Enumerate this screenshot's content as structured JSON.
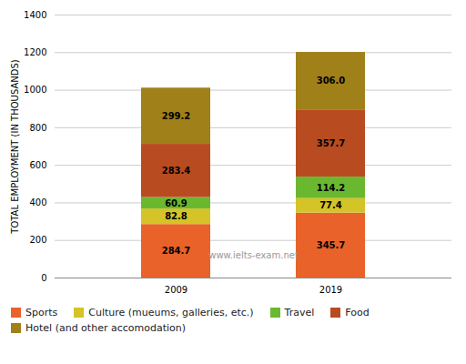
{
  "chart_data": {
    "type": "bar",
    "stacked": true,
    "categories": [
      "2009",
      "2019"
    ],
    "series": [
      {
        "name": "Sports",
        "color": "#e8622a",
        "values": [
          284.7,
          345.7
        ]
      },
      {
        "name": "Culture (mueums, galleries, etc.)",
        "color": "#d4c427",
        "values": [
          82.8,
          77.4
        ]
      },
      {
        "name": "Travel",
        "color": "#6ab830",
        "values": [
          60.9,
          114.2
        ]
      },
      {
        "name": "Food",
        "color": "#b84c20",
        "values": [
          283.4,
          357.7
        ]
      },
      {
        "name": "Hotel (and other accomodation)",
        "color": "#a08018",
        "values": [
          299.2,
          306.0
        ],
        "value_labels": [
          "299.2",
          "306.0"
        ]
      }
    ],
    "ylabel": "TOTAL EMPLOYMENT (IN THOUSANDS)",
    "ylim": [
      0,
      1400
    ],
    "yticks": [
      0,
      200,
      400,
      600,
      800,
      1000,
      1200,
      1400
    ],
    "grid": true,
    "data_labels": true,
    "legend": "bottom",
    "annotation": "www.ielts-exam.net"
  }
}
